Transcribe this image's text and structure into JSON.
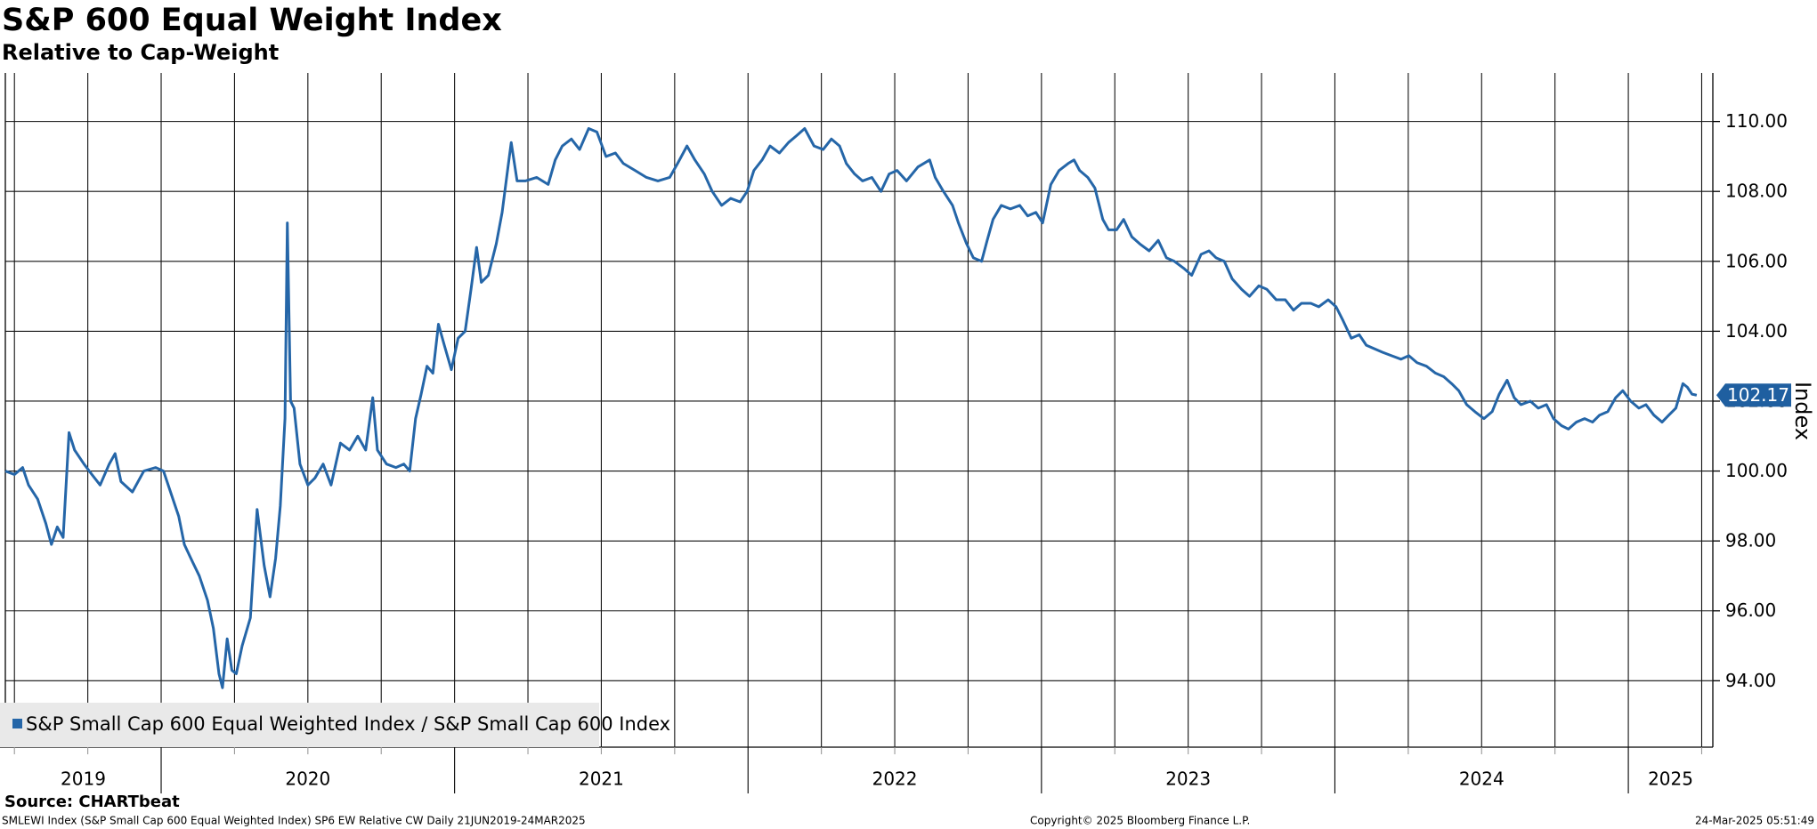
{
  "chart_data": {
    "type": "line",
    "title": "S&P 600 Equal Weight Index",
    "subtitle": "Relative to Cap-Weight",
    "y_axis_label": "Index",
    "source": "Source: CHARTbeat",
    "footer_left": "SMLEWI Index (S&P Small Cap 600 Equal Weighted Index) SP6 EW Relative CW  Daily 21JUN2019-24MAR2025",
    "footer_center": "Copyright© 2025 Bloomberg Finance L.P.",
    "footer_right": "24-Mar-2025 05:51:49",
    "grid": true,
    "legend": "lower left",
    "xlim": [
      2019.469,
      2025.288
    ],
    "xticks": [
      2019.5,
      2019.75,
      2020,
      2020.25,
      2020.5,
      2020.75,
      2021,
      2021.25,
      2021.5,
      2021.75,
      2022,
      2022.25,
      2022.5,
      2022.75,
      2023,
      2023.25,
      2023.5,
      2023.75,
      2024,
      2024.25,
      2024.5,
      2024.75,
      2025,
      2025.25
    ],
    "year_labels": [
      "2019",
      "2020",
      "2021",
      "2022",
      "2023",
      "2024",
      "2025"
    ],
    "ylim": [
      92.1,
      111.39
    ],
    "yticks": [
      {
        "value": 94,
        "label": "94.00"
      },
      {
        "value": 96,
        "label": "96.00"
      },
      {
        "value": 98,
        "label": "98.00"
      },
      {
        "value": 100,
        "label": "100.00"
      },
      {
        "value": 102,
        "label": "102.00"
      },
      {
        "value": 104,
        "label": "104.00"
      },
      {
        "value": 106,
        "label": "106.00"
      },
      {
        "value": 108,
        "label": "108.00"
      },
      {
        "value": 110,
        "label": "110.00"
      }
    ],
    "x": [
      2019.469,
      2019.5,
      2019.528,
      2019.548,
      2019.579,
      2019.607,
      2019.626,
      2019.646,
      2019.666,
      2019.686,
      2019.705,
      2019.737,
      2019.764,
      2019.792,
      2019.823,
      2019.843,
      2019.863,
      2019.902,
      2019.941,
      2019.981,
      2020.008,
      2020.032,
      2020.06,
      2020.079,
      2020.107,
      2020.13,
      2020.158,
      2020.178,
      2020.197,
      2020.209,
      2020.225,
      2020.241,
      2020.256,
      2020.276,
      2020.304,
      2020.327,
      2020.351,
      2020.371,
      2020.39,
      2020.406,
      2020.422,
      2020.43,
      2020.441,
      2020.453,
      2020.473,
      2020.5,
      2020.524,
      2020.552,
      2020.579,
      2020.611,
      2020.642,
      2020.67,
      2020.697,
      2020.721,
      2020.737,
      2020.768,
      2020.8,
      2020.827,
      2020.847,
      2020.867,
      2020.886,
      2020.906,
      2020.926,
      2020.945,
      2020.965,
      2020.989,
      2021.012,
      2021.036,
      2021.056,
      2021.075,
      2021.091,
      2021.115,
      2021.142,
      2021.162,
      2021.182,
      2021.193,
      2021.213,
      2021.241,
      2021.28,
      2021.319,
      2021.343,
      2021.367,
      2021.398,
      2021.426,
      2021.457,
      2021.485,
      2021.516,
      2021.548,
      2021.575,
      2021.615,
      2021.654,
      2021.693,
      2021.733,
      2021.76,
      2021.792,
      2021.819,
      2021.851,
      2021.878,
      2021.91,
      2021.941,
      2021.973,
      2021.997,
      2022.02,
      2022.048,
      2022.075,
      2022.107,
      2022.138,
      2022.166,
      2022.193,
      2022.225,
      2022.256,
      2022.284,
      2022.312,
      2022.335,
      2022.363,
      2022.39,
      2022.422,
      2022.453,
      2022.481,
      2022.508,
      2022.54,
      2022.579,
      2022.619,
      2022.638,
      2022.666,
      2022.697,
      2022.717,
      2022.745,
      2022.768,
      2022.796,
      2022.815,
      2022.835,
      2022.863,
      2022.894,
      2022.926,
      2022.953,
      2022.981,
      2023.004,
      2023.032,
      2023.06,
      2023.091,
      2023.111,
      2023.13,
      2023.158,
      2023.182,
      2023.209,
      2023.229,
      2023.256,
      2023.28,
      2023.308,
      2023.335,
      2023.367,
      2023.398,
      2023.426,
      2023.453,
      2023.485,
      2023.512,
      2023.544,
      2023.571,
      2023.595,
      2023.623,
      2023.65,
      2023.682,
      2023.709,
      2023.741,
      2023.768,
      2023.8,
      2023.831,
      2023.859,
      2023.886,
      2023.918,
      2023.945,
      2023.977,
      2024.004,
      2024.028,
      2024.056,
      2024.083,
      2024.107,
      2024.134,
      2024.162,
      2024.193,
      2024.225,
      2024.252,
      2024.28,
      2024.312,
      2024.343,
      2024.371,
      2024.398,
      2024.422,
      2024.449,
      2024.477,
      2024.508,
      2024.536,
      2024.56,
      2024.587,
      2024.611,
      2024.634,
      2024.666,
      2024.693,
      2024.721,
      2024.745,
      2024.772,
      2024.796,
      2024.823,
      2024.851,
      2024.878,
      2024.902,
      2024.93,
      2024.957,
      2024.981,
      2025.008,
      2025.036,
      2025.06,
      2025.087,
      2025.115,
      2025.138,
      2025.162,
      2025.186,
      2025.201,
      2025.217,
      2025.233
    ],
    "series": [
      {
        "name": "S&P Small Cap 600 Equal Weighted Index / S&P Small Cap 600 Index",
        "color": "#2566a8",
        "values": [
          100.0,
          99.9,
          100.1,
          99.6,
          99.2,
          98.5,
          97.9,
          98.4,
          98.1,
          101.1,
          100.6,
          100.2,
          99.9,
          99.6,
          100.2,
          100.5,
          99.7,
          99.4,
          100.0,
          100.1,
          100.0,
          99.4,
          98.7,
          97.9,
          97.4,
          97.0,
          96.3,
          95.5,
          94.2,
          93.8,
          95.2,
          94.3,
          94.2,
          95.0,
          95.8,
          98.9,
          97.3,
          96.4,
          97.5,
          99.0,
          101.5,
          107.1,
          102.0,
          101.8,
          100.2,
          99.6,
          99.8,
          100.2,
          99.6,
          100.8,
          100.6,
          101.0,
          100.6,
          102.1,
          100.6,
          100.2,
          100.1,
          100.2,
          100.0,
          101.5,
          102.2,
          103.0,
          102.8,
          104.2,
          103.6,
          102.9,
          103.8,
          104.0,
          105.2,
          106.4,
          105.4,
          105.6,
          106.5,
          107.4,
          108.7,
          109.4,
          108.3,
          108.3,
          108.4,
          108.2,
          108.9,
          109.3,
          109.5,
          109.2,
          109.8,
          109.7,
          109.0,
          109.1,
          108.8,
          108.6,
          108.4,
          108.3,
          108.4,
          108.8,
          109.3,
          108.9,
          108.5,
          108.0,
          107.6,
          107.8,
          107.7,
          108.0,
          108.6,
          108.9,
          109.3,
          109.1,
          109.4,
          109.6,
          109.8,
          109.3,
          109.2,
          109.5,
          109.3,
          108.8,
          108.5,
          108.3,
          108.4,
          108.0,
          108.5,
          108.6,
          108.3,
          108.7,
          108.9,
          108.4,
          108.0,
          107.6,
          107.1,
          106.5,
          106.1,
          106.0,
          106.6,
          107.2,
          107.6,
          107.5,
          107.6,
          107.3,
          107.4,
          107.1,
          108.2,
          108.6,
          108.8,
          108.9,
          108.6,
          108.4,
          108.1,
          107.2,
          106.9,
          106.9,
          107.2,
          106.7,
          106.5,
          106.3,
          106.6,
          106.1,
          106.0,
          105.8,
          105.6,
          106.2,
          106.3,
          106.1,
          106.0,
          105.5,
          105.2,
          105.0,
          105.3,
          105.2,
          104.9,
          104.9,
          104.6,
          104.8,
          104.8,
          104.7,
          104.9,
          104.7,
          104.3,
          103.8,
          103.9,
          103.6,
          103.5,
          103.4,
          103.3,
          103.2,
          103.3,
          103.1,
          103.0,
          102.8,
          102.7,
          102.5,
          102.3,
          101.9,
          101.7,
          101.5,
          101.7,
          102.2,
          102.6,
          102.1,
          101.9,
          102.0,
          101.8,
          101.9,
          101.5,
          101.3,
          101.2,
          101.4,
          101.5,
          101.4,
          101.6,
          101.7,
          102.1,
          102.3,
          102.0,
          101.8,
          101.9,
          101.6,
          101.4,
          101.6,
          101.8,
          102.5,
          102.4,
          102.2,
          102.17
        ]
      }
    ]
  }
}
